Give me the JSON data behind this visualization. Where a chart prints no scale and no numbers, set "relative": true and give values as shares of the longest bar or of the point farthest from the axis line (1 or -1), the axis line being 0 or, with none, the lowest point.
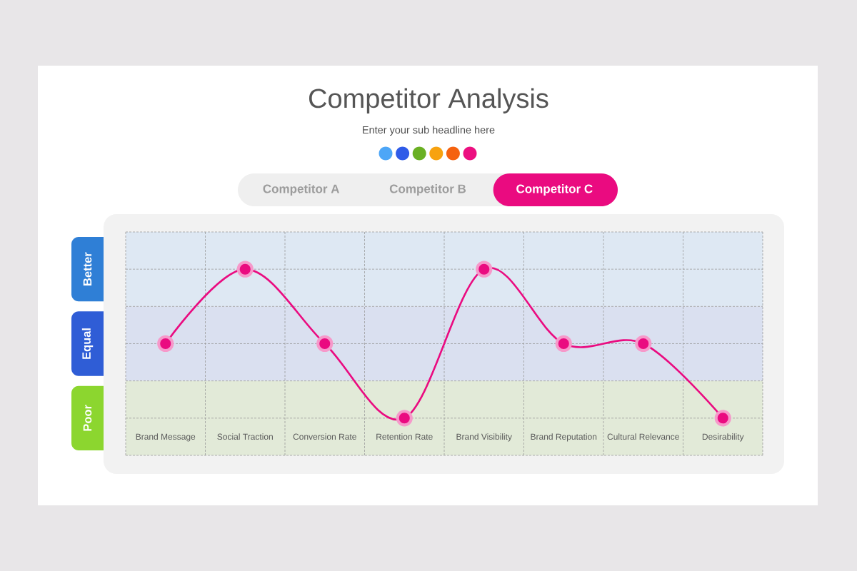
{
  "chart_data": {
    "type": "line",
    "title": "Competitor Analysis",
    "subtitle": "Enter your sub headline here",
    "categories": [
      "Brand Message",
      "Social Traction",
      "Conversion Rate",
      "Retention Rate",
      "Brand Visibility",
      "Brand Reputation",
      "Cultural Relevance",
      "Desirability"
    ],
    "series": [
      {
        "name": "Competitor C",
        "color": "#ea0b80",
        "values": [
          0.6,
          1,
          0.6,
          0.2,
          1,
          0.6,
          0.6,
          0.2
        ]
      }
    ],
    "relative": true,
    "bands": [
      {
        "axis": "y",
        "from": 0.8,
        "to": 1.2,
        "label": "Better",
        "color": "#dee8f3"
      },
      {
        "axis": "y",
        "from": 0.4,
        "to": 0.8,
        "label": "Equal",
        "color": "#dae0f0"
      },
      {
        "axis": "y",
        "from": 0,
        "to": 0.4,
        "label": "Poor",
        "color": "#e2ead8"
      }
    ],
    "annotations": [
      "Competitor A",
      "Competitor B"
    ],
    "grid": true,
    "legend": "top",
    "marker": "circle",
    "line_style": "solid"
  }
}
